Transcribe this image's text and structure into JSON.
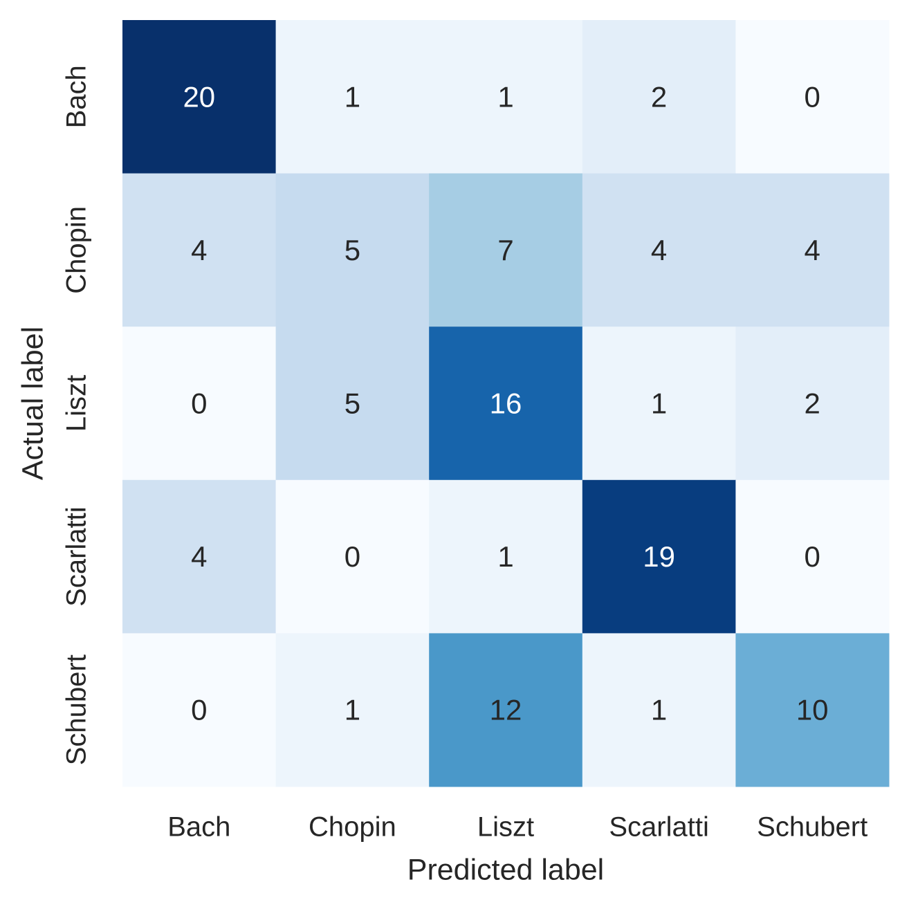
{
  "chart_data": {
    "type": "heatmap",
    "title": "",
    "xlabel": "Predicted label",
    "ylabel": "Actual label",
    "x_categories": [
      "Bach",
      "Chopin",
      "Liszt",
      "Scarlatti",
      "Schubert"
    ],
    "y_categories": [
      "Bach",
      "Chopin",
      "Liszt",
      "Scarlatti",
      "Schubert"
    ],
    "values": [
      [
        20,
        1,
        1,
        2,
        0
      ],
      [
        4,
        5,
        7,
        4,
        4
      ],
      [
        0,
        5,
        16,
        1,
        2
      ],
      [
        4,
        0,
        1,
        19,
        0
      ],
      [
        0,
        1,
        12,
        1,
        10
      ]
    ],
    "colormap": "Blues",
    "value_range": [
      0,
      20
    ],
    "colorbar": false,
    "annotations": true,
    "grid": false,
    "colors": {
      "low": "#f7fbff",
      "high": "#08306b",
      "dark_text": "#262626",
      "light_text": "#ffffff"
    }
  }
}
